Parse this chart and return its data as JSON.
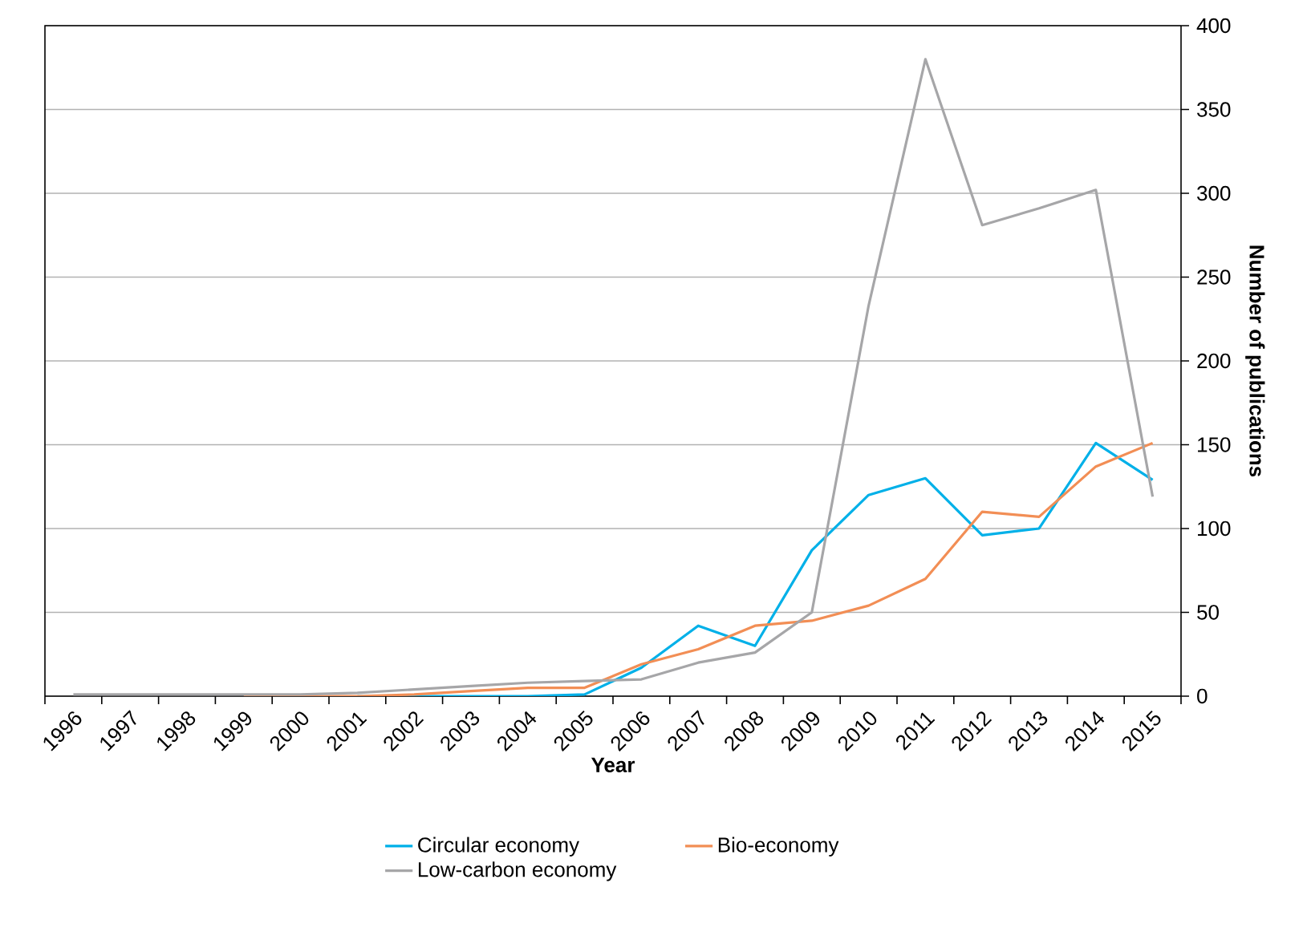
{
  "chart_data": {
    "type": "line",
    "xlabel": "Year",
    "ylabel": "Number of publications",
    "categories": [
      "1996",
      "1997",
      "1998",
      "1999",
      "2000",
      "2001",
      "2002",
      "2003",
      "2004",
      "2005",
      "2006",
      "2007",
      "2008",
      "2009",
      "2010",
      "2011",
      "2012",
      "2013",
      "2014",
      "2015"
    ],
    "series": [
      {
        "name": "Circular economy",
        "color": "#00b0e8",
        "values": [
          null,
          null,
          null,
          null,
          null,
          0,
          0,
          0,
          0,
          1,
          17,
          42,
          30,
          87,
          120,
          130,
          96,
          100,
          151,
          129
        ]
      },
      {
        "name": "Bio-economy",
        "color": "#f28e55",
        "values": [
          null,
          null,
          null,
          0,
          0,
          0,
          1,
          3,
          5,
          5,
          19,
          28,
          42,
          45,
          54,
          70,
          110,
          107,
          137,
          151
        ]
      },
      {
        "name": "Low-carbon economy",
        "color": "#a6a6a8",
        "values": [
          1,
          1,
          1,
          1,
          1,
          2,
          4,
          6,
          8,
          9,
          10,
          20,
          26,
          50,
          233,
          380,
          281,
          291,
          302,
          119
        ]
      }
    ],
    "ylim": [
      0,
      400
    ],
    "yticks": [
      0,
      50,
      100,
      150,
      200,
      250,
      300,
      350,
      400
    ],
    "grid": "y",
    "legend": "bottom",
    "marker": "none",
    "line_style": "solid"
  }
}
